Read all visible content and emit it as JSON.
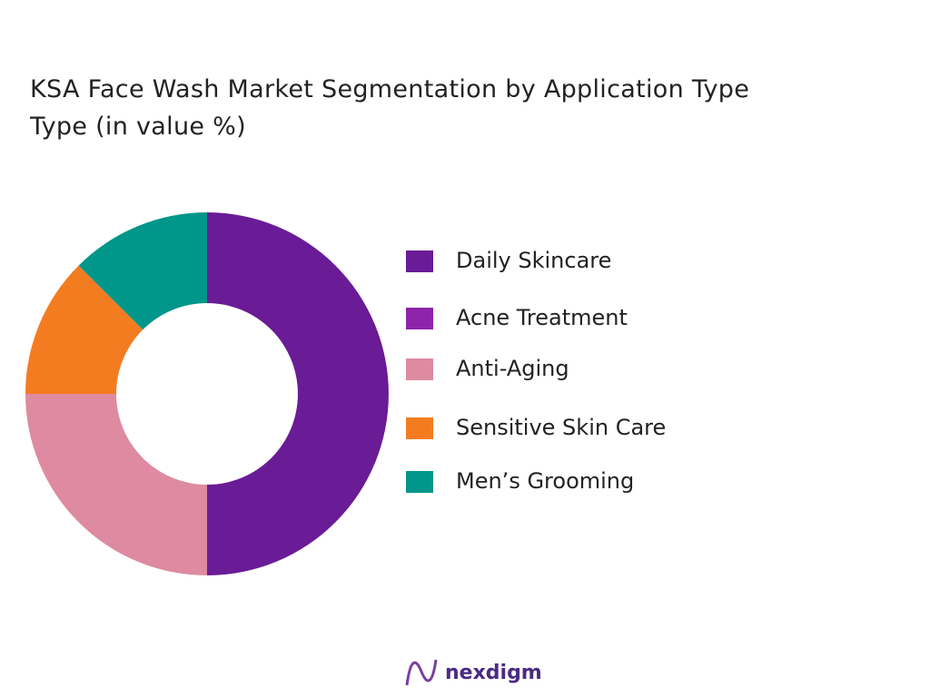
{
  "chart_data": {
    "type": "pie",
    "title": "KSA Face Wash Market Segmentation by Application  Type\nType  (in value %)",
    "categories": [
      "Daily Skincare",
      "Acne Treatment",
      "Anti-Aging",
      "Sensitive Skin Care",
      "Men’s Grooming"
    ],
    "values": [
      50,
      0,
      25,
      12.5,
      12.5
    ],
    "colors": [
      "#6a1b96",
      "#8e24aa",
      "#de8aa0",
      "#f47c20",
      "#00968a"
    ],
    "donut": true
  },
  "logo": "nexdigm"
}
